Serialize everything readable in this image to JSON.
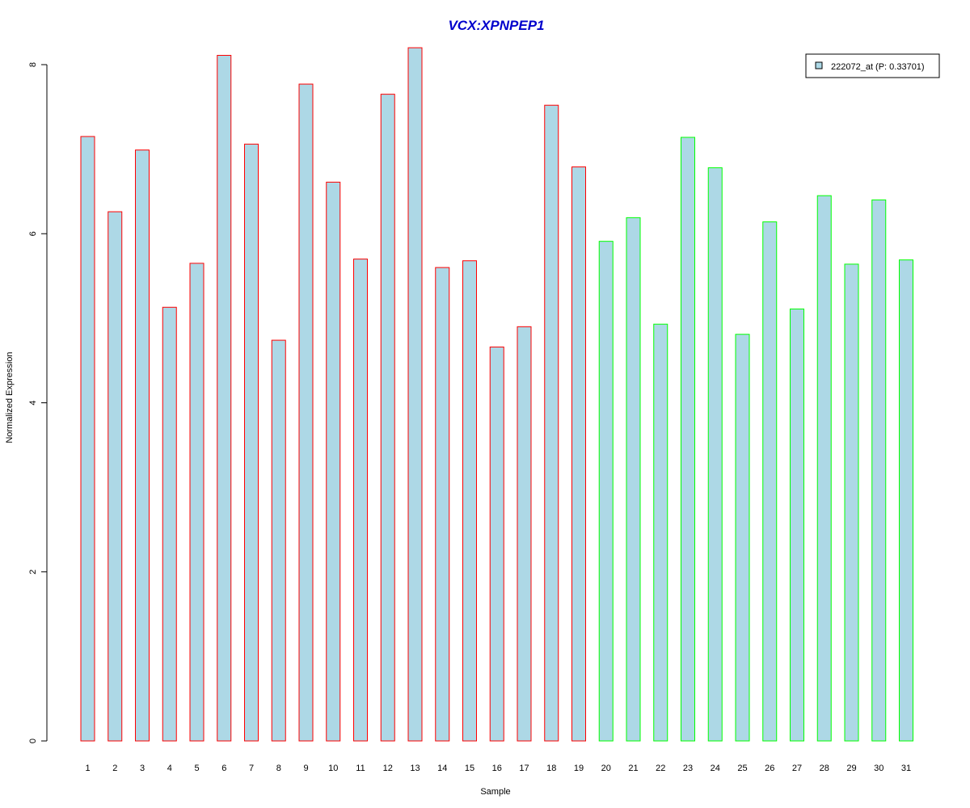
{
  "chart_data": {
    "type": "bar",
    "title": "VCX:XPNPEP1",
    "xlabel": "Sample",
    "ylabel": "Normalized Expression",
    "ylim": [
      0,
      8
    ],
    "yticks": [
      0,
      2,
      4,
      6,
      8
    ],
    "categories": [
      "1",
      "2",
      "3",
      "4",
      "5",
      "6",
      "7",
      "8",
      "9",
      "10",
      "11",
      "12",
      "13",
      "14",
      "15",
      "16",
      "17",
      "18",
      "19",
      "20",
      "21",
      "22",
      "23",
      "24",
      "25",
      "26",
      "27",
      "28",
      "29",
      "30",
      "31"
    ],
    "series": [
      {
        "name": "222072_at (P: 0.33701)",
        "fill": "#add8e6",
        "values": [
          7.15,
          6.26,
          6.99,
          5.13,
          5.65,
          8.11,
          7.06,
          4.74,
          7.77,
          6.61,
          5.7,
          7.65,
          8.2,
          5.6,
          5.68,
          4.66,
          4.9,
          7.52,
          6.79,
          5.91,
          6.19,
          4.93,
          7.14,
          6.78,
          4.81,
          6.14,
          5.11,
          6.45,
          5.64,
          6.4,
          5.69
        ]
      }
    ],
    "bar_outline_colors": [
      "#ff0000",
      "#ff0000",
      "#ff0000",
      "#ff0000",
      "#ff0000",
      "#ff0000",
      "#ff0000",
      "#ff0000",
      "#ff0000",
      "#ff0000",
      "#ff0000",
      "#ff0000",
      "#ff0000",
      "#ff0000",
      "#ff0000",
      "#ff0000",
      "#ff0000",
      "#ff0000",
      "#ff0000",
      "#00ff00",
      "#00ff00",
      "#00ff00",
      "#00ff00",
      "#00ff00",
      "#00ff00",
      "#00ff00",
      "#00ff00",
      "#00ff00",
      "#00ff00",
      "#00ff00",
      "#00ff00"
    ],
    "title_color": "#0000cc",
    "legend": {
      "placement": "top-right",
      "label": "222072_at (P: 0.33701)"
    },
    "grid": false
  }
}
